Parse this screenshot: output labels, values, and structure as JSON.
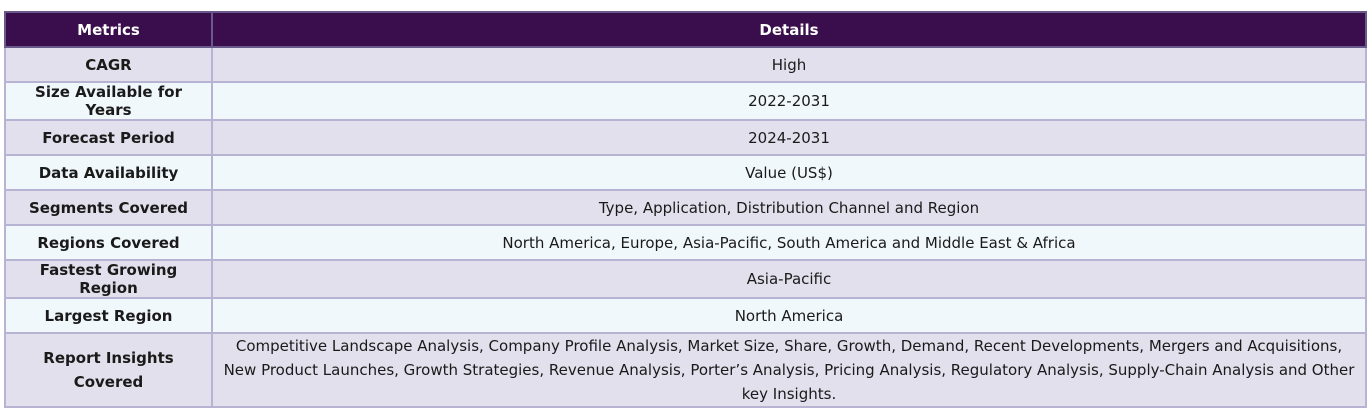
{
  "header": {
    "metrics_label": "Metrics",
    "details_label": "Details"
  },
  "rows": [
    {
      "metric": "CAGR",
      "detail": "High"
    },
    {
      "metric": "Size Available for Years",
      "detail": "2022-2031"
    },
    {
      "metric": "Forecast Period",
      "detail": "2024-2031"
    },
    {
      "metric": "Data Availability",
      "detail": "Value (US$)"
    },
    {
      "metric": "Segments Covered",
      "detail": "Type, Application, Distribution Channel and Region"
    },
    {
      "metric": "Regions Covered",
      "detail": "North America, Europe, Asia-Pacific, South America and Middle East & Africa"
    },
    {
      "metric": "Fastest Growing Region",
      "detail": "Asia-Pacific"
    },
    {
      "metric": "Largest Region",
      "detail": "North America"
    },
    {
      "metric": "Report Insights Covered",
      "detail": "Competitive Landscape Analysis, Company Profile Analysis, Market Size, Share, Growth, Demand, Recent Developments, Mergers and Acquisitions, New Product Launches, Growth Strategies, Revenue Analysis, Porter’s Analysis, Pricing Analysis, Regulatory Analysis, Supply-Chain Analysis and Other key Insights."
    }
  ],
  "colors": {
    "header_bg": "#3a0e4c",
    "row_odd_bg": "#e2e0ec",
    "row_even_bg": "#f1f8fc",
    "border": "#b7b3d3"
  }
}
